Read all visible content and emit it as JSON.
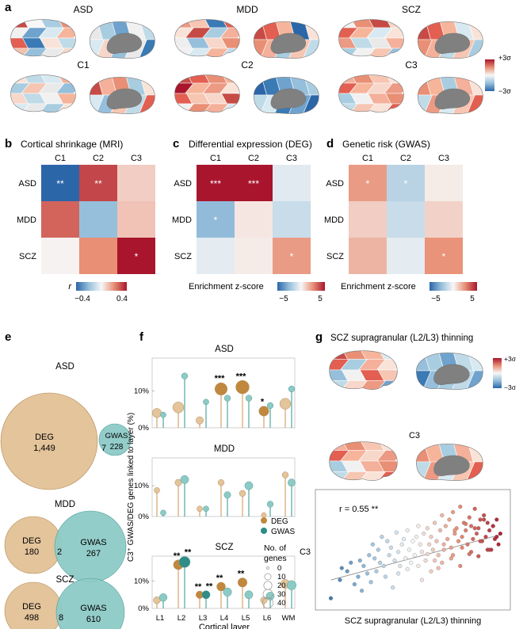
{
  "colors": {
    "deg": "#d4a36a",
    "gwas": "#4fa6a2",
    "deg_light": "#e3c49b",
    "gwas_light": "#8dcac6",
    "neg": "#2b66a8",
    "pos": "#a8152d",
    "brain_gray": "#808080"
  },
  "panel_a": {
    "letter": "a",
    "maps": [
      {
        "label": "ASD",
        "lateral": [
          "#c74b45",
          "#f7f7f7",
          "#a9cde0",
          "#e88f75",
          "#f1f1f1",
          "#6fa3cd",
          "#d8e9f1",
          "#f6b59b",
          "#e25f51",
          "#3a7ab5",
          "#f9e3d8",
          "#c0dbe8",
          "#f0c1ad",
          "#96bfdb",
          "#e9e9e9",
          "#f5d6c8"
        ],
        "medial": [
          "#e8e8e8",
          "#a9cde0",
          "#6fa3cd",
          "#f1f1f1",
          "#c0dbe8",
          "#d8e9f1",
          "#f5d6c8",
          "#96bfdb",
          "#e9e9e9",
          "#3a7ab5"
        ]
      },
      {
        "label": "MDD",
        "lateral": [
          "#ec9a83",
          "#f6c6b2",
          "#3a7ab5",
          "#e25f51",
          "#f9e3d8",
          "#c74b45",
          "#a9cde0",
          "#f4b09a",
          "#eeeeee",
          "#96bfdb",
          "#f7d7ca",
          "#e88f75",
          "#f1f1f1",
          "#d8e9f1",
          "#f6b59b",
          "#c0dbe8"
        ],
        "medial": [
          "#c74b45",
          "#e25f51",
          "#f6b59b",
          "#2b66a8",
          "#f9e3d8",
          "#e88f75",
          "#f4b09a",
          "#a9cde0",
          "#f6c6b2",
          "#c0dbe8"
        ]
      },
      {
        "label": "SCZ",
        "lateral": [
          "#f1f1f1",
          "#e88f75",
          "#c74b45",
          "#f7d7ca",
          "#e25f51",
          "#f6b59b",
          "#d8e9f1",
          "#f9e3d8",
          "#ec9a83",
          "#c0dbe8",
          "#e9e9e9",
          "#f4b09a",
          "#a9cde0",
          "#f1f1f1",
          "#f6c6b2",
          "#96bfdb"
        ],
        "medial": [
          "#c74b45",
          "#e25f51",
          "#f6b59b",
          "#d8e9f1",
          "#f9e3d8",
          "#e88f75",
          "#f4b09a",
          "#c0dbe8",
          "#f6c6b2",
          "#a9cde0"
        ]
      },
      {
        "label": "C1",
        "lateral": [
          "#f9e3d8",
          "#c0dbe8",
          "#d8e9f1",
          "#f4b09a",
          "#a9cde0",
          "#f6c6b2",
          "#e9e9e9",
          "#96bfdb",
          "#f7d7ca",
          "#c0dbe8",
          "#f1f1f1",
          "#f6b59b",
          "#d8e9f1",
          "#e9e9e9",
          "#a9cde0",
          "#f9e3d8"
        ],
        "medial": [
          "#c74b45",
          "#f4b09a",
          "#e88f75",
          "#a9cde0",
          "#f9e3d8",
          "#d8e9f1",
          "#96bfdb",
          "#f6c6b2",
          "#c0dbe8",
          "#e25f51"
        ]
      },
      {
        "label": "C2",
        "lateral": [
          "#c74b45",
          "#e25f51",
          "#e88f75",
          "#f4b09a",
          "#a8152d",
          "#f6b59b",
          "#ec9a83",
          "#f9e3d8",
          "#e25f51",
          "#f6c6b2",
          "#f7d7ca",
          "#c74b45",
          "#f1f1f1",
          "#e88f75",
          "#f4b09a",
          "#d8e9f1"
        ],
        "medial": [
          "#2b66a8",
          "#3a7ab5",
          "#6fa3cd",
          "#96bfdb",
          "#a9cde0",
          "#c0dbe8",
          "#d8e9f1",
          "#3a7ab5",
          "#6fa3cd",
          "#2b66a8"
        ]
      },
      {
        "label": "C3",
        "lateral": [
          "#f4b09a",
          "#e88f75",
          "#f6c6b2",
          "#f9e3d8",
          "#e25f51",
          "#f6b59b",
          "#f7d7ca",
          "#ec9a83",
          "#a9cde0",
          "#f1f1f1",
          "#f4b09a",
          "#e88f75",
          "#c0dbe8",
          "#f6c6b2",
          "#f9e3d8",
          "#e25f51"
        ],
        "medial": [
          "#e88f75",
          "#f6b59b",
          "#a9cde0",
          "#f4b09a",
          "#f9e3d8",
          "#c0dbe8",
          "#ec9a83",
          "#d8e9f1",
          "#f6c6b2",
          "#e25f51"
        ]
      }
    ],
    "legend": {
      "top": "+3σ",
      "bottom": "−3σ"
    }
  },
  "chart_data": [
    {
      "type": "heatmap",
      "panel": "b",
      "title": "Cortical shrinkage (MRI)",
      "columns": [
        "C1",
        "C2",
        "C3"
      ],
      "rows": [
        "ASD",
        "MDD",
        "SCZ"
      ],
      "values": [
        [
          -0.4,
          0.32,
          0.08
        ],
        [
          0.27,
          -0.2,
          0.1
        ],
        [
          0.01,
          0.2,
          0.4
        ]
      ],
      "stars": [
        [
          "**",
          "**",
          ""
        ],
        [
          "",
          "",
          ""
        ],
        [
          "",
          "",
          "*"
        ]
      ],
      "colorbar": {
        "label": "r",
        "min": -0.4,
        "max": 0.4,
        "ticks": [
          "−0.4",
          "0.4"
        ]
      }
    },
    {
      "type": "heatmap",
      "panel": "c",
      "title": "Differential expression (DEG)",
      "columns": [
        "C1",
        "C2",
        "C3"
      ],
      "rows": [
        "ASD",
        "MDD",
        "SCZ"
      ],
      "values": [
        [
          5,
          5,
          -0.6
        ],
        [
          -2.6,
          0.4,
          -1.2
        ],
        [
          -0.5,
          0.3,
          2.2
        ]
      ],
      "stars": [
        [
          "***",
          "***",
          ""
        ],
        [
          "*",
          "",
          ""
        ],
        [
          "",
          "",
          "*"
        ]
      ],
      "colorbar": {
        "label": "Enrichment z-score",
        "min": -5,
        "max": 5,
        "ticks": [
          "−5",
          "5"
        ]
      }
    },
    {
      "type": "heatmap",
      "panel": "d",
      "title": "Genetic risk (GWAS)",
      "columns": [
        "C1",
        "C2",
        "C3"
      ],
      "rows": [
        "ASD",
        "MDD",
        "SCZ"
      ],
      "values": [
        [
          2.2,
          -1.6,
          0.3
        ],
        [
          1.0,
          -1.2,
          0.9
        ],
        [
          1.6,
          -0.5,
          2.4
        ]
      ],
      "stars": [
        [
          "*",
          "*",
          ""
        ],
        [
          "",
          "",
          ""
        ],
        [
          "",
          "",
          "*"
        ]
      ],
      "colorbar": {
        "label": "Enrichment z-score",
        "min": -5,
        "max": 5,
        "ticks": [
          "−5",
          "5"
        ]
      }
    },
    {
      "type": "venn",
      "panel": "e",
      "sets": [
        {
          "disorder": "ASD",
          "deg_label": "DEG",
          "deg_count": "1,449",
          "overlap": "7",
          "gwas_label": "GWAS",
          "gwas_count": "228"
        },
        {
          "disorder": "MDD",
          "deg_label": "DEG",
          "deg_count": "180",
          "overlap": "2",
          "gwas_label": "GWAS",
          "gwas_count": "267"
        },
        {
          "disorder": "SCZ",
          "deg_label": "DEG",
          "deg_count": "498",
          "overlap": "8",
          "gwas_label": "GWAS",
          "gwas_count": "610"
        }
      ]
    },
    {
      "type": "lollipop",
      "panel": "f",
      "categories": [
        "L1",
        "L2",
        "L3",
        "L4",
        "L5",
        "L6",
        "WM"
      ],
      "xlabel": "Cortical layer",
      "ylabel": "C3⁺ GWAS/DEG genes linked to layer (%)",
      "yticks": [
        "0%",
        "10%"
      ],
      "ylim": [
        0,
        20
      ],
      "facets": [
        {
          "title": "ASD",
          "deg": [
            4,
            5.5,
            2,
            10.5,
            11,
            4.5,
            6.5
          ],
          "deg_n": [
            12,
            20,
            6,
            28,
            34,
            15,
            20
          ],
          "gwas": [
            3.5,
            14,
            7,
            8,
            8,
            6,
            10.5
          ],
          "gwas_n": [
            2,
            3,
            2,
            3,
            3,
            3,
            3
          ],
          "deg_stars": [
            "",
            "",
            "",
            "***",
            "***",
            "*",
            ""
          ],
          "gwas_stars": [
            "",
            "",
            "",
            "",
            "",
            "",
            ""
          ]
        },
        {
          "title": "MDD",
          "deg": [
            8.5,
            11,
            2.5,
            11,
            7.5,
            0.5,
            13.5
          ],
          "deg_n": [
            2,
            4,
            2,
            3,
            3,
            1,
            3
          ],
          "gwas": [
            1.2,
            12,
            2.5,
            7,
            10,
            4,
            11
          ],
          "gwas_n": [
            2,
            8,
            2,
            4,
            8,
            3,
            6
          ],
          "deg_stars": [
            "",
            "",
            "",
            "",
            "",
            "",
            ""
          ],
          "gwas_stars": [
            "",
            "",
            "",
            "",
            "",
            "",
            ""
          ]
        },
        {
          "title": "SCZ",
          "deg": [
            3,
            16,
            5,
            8,
            9.5,
            3,
            9
          ],
          "deg_n": [
            5,
            14,
            6,
            10,
            12,
            4,
            11
          ],
          "gwas": [
            4,
            17,
            5,
            6,
            5,
            4.5,
            8.5
          ],
          "gwas_n": [
            7,
            20,
            8,
            9,
            8,
            8,
            12
          ],
          "deg_stars": [
            "",
            "**",
            "**",
            "**",
            "**",
            "",
            ""
          ],
          "gwas_stars": [
            "",
            "**",
            "**",
            "",
            "",
            "",
            ""
          ]
        }
      ],
      "legend": {
        "deg": "DEG",
        "gwas": "GWAS",
        "size_title_1": "No. of",
        "size_title_2": "genes",
        "sizes": [
          "0",
          "10",
          "20",
          "30",
          "40"
        ]
      }
    },
    {
      "type": "scatter",
      "panel": "g",
      "title": "SCZ supragranular (L2/L3) thinning",
      "xlabel": "SCZ supragranular (L2/L3) thinning",
      "ylabel": "C3",
      "annotation": "r = 0.55 **",
      "x": [
        0.05,
        0.1,
        0.11,
        0.14,
        0.16,
        0.18,
        0.2,
        0.21,
        0.22,
        0.23,
        0.25,
        0.26,
        0.27,
        0.28,
        0.29,
        0.3,
        0.31,
        0.32,
        0.33,
        0.34,
        0.35,
        0.36,
        0.37,
        0.38,
        0.39,
        0.4,
        0.41,
        0.42,
        0.43,
        0.44,
        0.45,
        0.46,
        0.47,
        0.48,
        0.49,
        0.5,
        0.51,
        0.52,
        0.53,
        0.54,
        0.55,
        0.56,
        0.57,
        0.58,
        0.59,
        0.6,
        0.61,
        0.62,
        0.63,
        0.64,
        0.65,
        0.66,
        0.67,
        0.68,
        0.69,
        0.7,
        0.71,
        0.72,
        0.73,
        0.74,
        0.75,
        0.76,
        0.77,
        0.78,
        0.79,
        0.8,
        0.81,
        0.82,
        0.83,
        0.84,
        0.85,
        0.86,
        0.87,
        0.88,
        0.89,
        0.9,
        0.91,
        0.92,
        0.93,
        0.94,
        0.95,
        0.96,
        0.97,
        0.98,
        0.42,
        0.47,
        0.53,
        0.58,
        0.62,
        0.67,
        0.72,
        0.77,
        0.82,
        0.87,
        0.92,
        0.96,
        0.66,
        0.71,
        0.76,
        0.81,
        0.86,
        0.91,
        0.73,
        0.79,
        0.84,
        0.89,
        0.94,
        0.55,
        0.6,
        0.64
      ],
      "y": [
        0.05,
        0.22,
        0.33,
        0.3,
        0.38,
        0.18,
        0.25,
        0.4,
        0.12,
        0.35,
        0.28,
        0.45,
        0.2,
        0.55,
        0.42,
        0.3,
        0.5,
        0.38,
        0.62,
        0.35,
        0.25,
        0.58,
        0.45,
        0.52,
        0.15,
        0.4,
        0.66,
        0.48,
        0.35,
        0.55,
        0.6,
        0.42,
        0.68,
        0.5,
        0.38,
        0.58,
        0.45,
        0.62,
        0.72,
        0.55,
        0.48,
        0.65,
        0.4,
        0.7,
        0.55,
        0.62,
        0.5,
        0.75,
        0.58,
        0.45,
        0.68,
        0.82,
        0.55,
        0.72,
        0.6,
        0.78,
        0.52,
        0.85,
        0.65,
        0.7,
        0.58,
        0.9,
        0.62,
        0.75,
        0.68,
        0.55,
        0.8,
        0.72,
        0.6,
        0.88,
        0.65,
        0.7,
        0.78,
        0.58,
        0.82,
        0.62,
        0.75,
        0.68,
        0.5,
        0.72,
        0.6,
        0.78,
        0.55,
        0.65,
        0.28,
        0.32,
        0.35,
        0.46,
        0.4,
        0.5,
        0.45,
        0.52,
        0.48,
        0.58,
        0.5,
        0.62,
        0.38,
        0.42,
        0.35,
        0.46,
        0.44,
        0.5,
        0.68,
        0.74,
        0.7,
        0.78,
        0.72,
        0.22,
        0.3,
        0.33
      ],
      "trend": {
        "x0": 0.05,
        "y0": 0.22,
        "x1": 0.98,
        "y1": 0.64
      },
      "legend": {
        "top": "+3σ",
        "bottom": "−3σ"
      },
      "map_label": "C3"
    }
  ]
}
